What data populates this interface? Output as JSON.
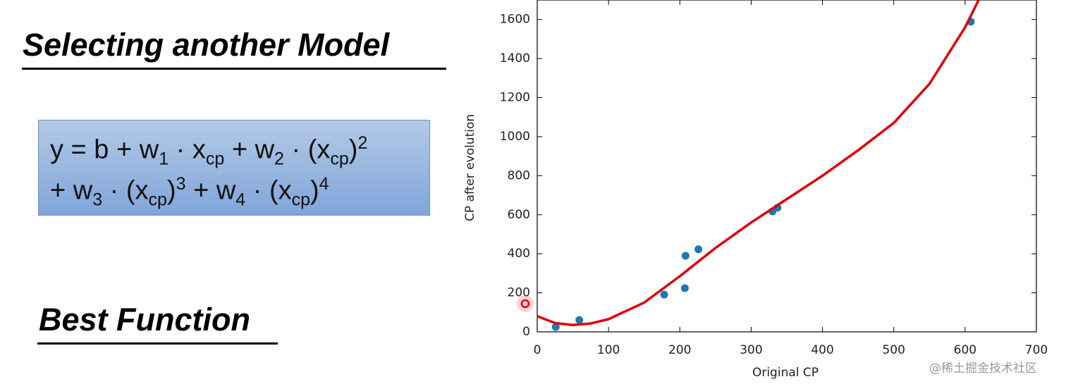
{
  "slide": {
    "title": "Selecting another Model",
    "formula": [
      [
        {
          "base": "y = b + w"
        },
        {
          "sub": "1"
        },
        {
          "base": " · x"
        },
        {
          "sub": "cp"
        },
        {
          "base": " + w"
        },
        {
          "sub": "2"
        },
        {
          "base": " · (x"
        },
        {
          "sub": "cp"
        },
        {
          "base": ")"
        },
        {
          "sup": "2"
        }
      ],
      [
        {
          "base": "+ w"
        },
        {
          "sub": "3"
        },
        {
          "base": " · (x"
        },
        {
          "sub": "cp"
        },
        {
          "base": ")"
        },
        {
          "sup": "3"
        },
        {
          "base": " + w"
        },
        {
          "sub": "4"
        },
        {
          "base": " · (x"
        },
        {
          "sub": "cp"
        },
        {
          "base": ")"
        },
        {
          "sup": "4"
        }
      ]
    ],
    "subtitle": "Best Function",
    "watermark": "@稀土掘金技术社区"
  },
  "chart_data": {
    "type": "scatter",
    "x_label": "Original CP",
    "y_label": "CP after evolution",
    "xlim": [
      0,
      700
    ],
    "xticks": [
      0,
      100,
      200,
      300,
      400,
      500,
      600,
      700
    ],
    "ylim": [
      0,
      1700
    ],
    "yticks": [
      0,
      200,
      400,
      600,
      800,
      1000,
      1200,
      1400,
      1600
    ],
    "series": [
      {
        "type": "scatter",
        "color": "#1f77b4",
        "x": [
          26,
          59,
          178,
          207,
          208,
          226,
          330,
          337,
          608
        ],
        "values": [
          25,
          61,
          191,
          224,
          390,
          423,
          617,
          636,
          1589
        ]
      },
      {
        "type": "line",
        "color": "#e00000",
        "x": [
          0,
          25,
          50,
          75,
          100,
          150,
          200,
          250,
          300,
          350,
          400,
          450,
          500,
          550,
          600,
          619
        ],
        "values": [
          80,
          45,
          35,
          43,
          65,
          150,
          285,
          430,
          560,
          680,
          800,
          930,
          1070,
          1270,
          1560,
          1700
        ]
      }
    ]
  }
}
